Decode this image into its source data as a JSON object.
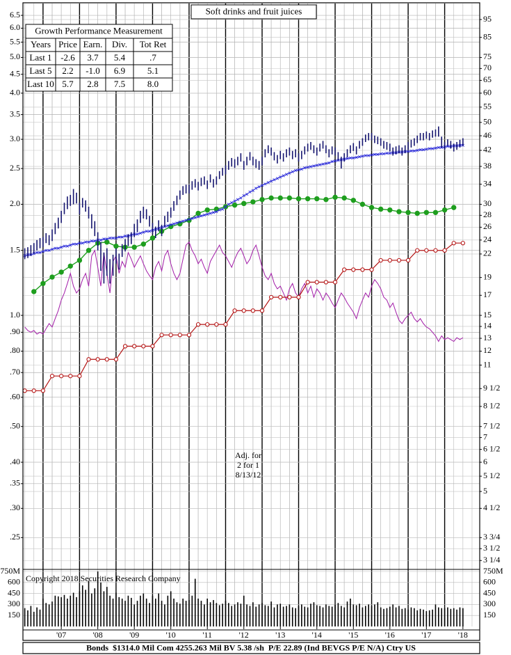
{
  "chart_data": {
    "type": "stock",
    "title": "Soft drinks and fruit juices",
    "annotation": [
      "Adj. for",
      "2 for 1",
      "8/13/12"
    ],
    "copyright": "Copyright 2018 Securities Research Company",
    "footer": "Bonds  $1314.0 Mil Com 4255.263 Mil BV 5.38 /sh  P/E 22.89 (Ind BEVGS P/E N/A) Ctry US",
    "growth_table": {
      "title": "Growth Performance Measurement",
      "header": [
        "Years",
        "Price",
        "Earn.",
        "Div.",
        "Tot Ret"
      ],
      "rows": [
        [
          "Last 1",
          "-2.6",
          "3.7",
          "5.4",
          ".7"
        ],
        [
          "Last 5",
          "2.2",
          "-1.0",
          "6.9",
          "5.1"
        ],
        [
          "Last 10",
          "5.7",
          "2.8",
          "7.5",
          "8.0"
        ]
      ]
    },
    "log_scale": true,
    "grid": true,
    "xlim": [
      2006.45,
      2018.96
    ],
    "xticks": [
      {
        "value": 2007.5,
        "label": "'07"
      },
      {
        "value": 2008.5,
        "label": "'08"
      },
      {
        "value": 2009.5,
        "label": "'09"
      },
      {
        "value": 2010.5,
        "label": "'10"
      },
      {
        "value": 2011.5,
        "label": "'11"
      },
      {
        "value": 2012.5,
        "label": "'12"
      },
      {
        "value": 2013.5,
        "label": "'13"
      },
      {
        "value": 2014.5,
        "label": "'14"
      },
      {
        "value": 2015.5,
        "label": "'15"
      },
      {
        "value": 2016.5,
        "label": "'16"
      },
      {
        "value": 2017.5,
        "label": "'17"
      },
      {
        "value": 2018.5,
        "label": "'18"
      }
    ],
    "ylim": [
      0.205,
      7.0
    ],
    "yticks": [
      6.5,
      {
        "value": 6,
        "label": "6.0"
      },
      5.5,
      {
        "value": 5,
        "label": "5.0"
      },
      4.5,
      {
        "value": 4,
        "label": "4.0"
      },
      3.5,
      {
        "value": 3,
        "label": "3.0"
      },
      2.5,
      {
        "value": 2,
        "label": "2.0"
      },
      1.5,
      {
        "value": 1,
        "label": "1.0"
      },
      {
        "value": 0.9,
        "label": ".90"
      },
      {
        "value": 0.8,
        "label": ".80"
      },
      {
        "value": 0.7,
        "label": ".70"
      },
      {
        "value": 0.6,
        "label": ".60"
      },
      {
        "value": 0.5,
        "label": ".50"
      },
      {
        "value": 0.4,
        "label": ".40"
      },
      {
        "value": 0.35,
        "label": ".35"
      },
      {
        "value": 0.3,
        "label": ".30"
      },
      {
        "value": 0.25,
        "label": ".25"
      }
    ],
    "y2lim": [
      3.075,
      105
    ],
    "y2ticks": [
      95,
      85,
      75,
      70,
      65,
      60,
      55,
      50,
      46,
      42,
      38,
      34,
      30,
      28,
      26,
      24,
      22,
      19,
      17,
      15,
      14,
      13,
      12,
      11,
      {
        "value": 9.5,
        "label": "9 1/2"
      },
      {
        "value": 8.5,
        "label": "8 1/2"
      },
      {
        "value": 7.5,
        "label": "7 1/2"
      },
      7,
      {
        "value": 6.5,
        "label": "6 1/2"
      },
      6,
      {
        "value": 5.5,
        "label": "5 1/2"
      },
      5,
      {
        "value": 4.5,
        "label": "4 1/2"
      },
      {
        "value": 3.75,
        "label": "3 3/4"
      },
      {
        "value": 3.5,
        "label": "3 1/2"
      },
      {
        "value": 3.25,
        "label": "3 1/4"
      }
    ],
    "volume_lim": [
      0,
      750
    ],
    "volume_ticks": [
      {
        "value": 750,
        "label": "750M"
      },
      600,
      450,
      300,
      150
    ],
    "x": [
      2006.5,
      2006.583,
      2006.667,
      2006.75,
      2006.833,
      2006.917,
      2007,
      2007.083,
      2007.167,
      2007.25,
      2007.333,
      2007.417,
      2007.5,
      2007.583,
      2007.667,
      2007.75,
      2007.833,
      2007.917,
      2008,
      2008.083,
      2008.167,
      2008.25,
      2008.333,
      2008.417,
      2008.5,
      2008.583,
      2008.667,
      2008.75,
      2008.833,
      2008.917,
      2009,
      2009.083,
      2009.167,
      2009.25,
      2009.333,
      2009.417,
      2009.5,
      2009.583,
      2009.667,
      2009.75,
      2009.833,
      2009.917,
      2010,
      2010.083,
      2010.167,
      2010.25,
      2010.333,
      2010.417,
      2010.5,
      2010.583,
      2010.667,
      2010.75,
      2010.833,
      2010.917,
      2011,
      2011.083,
      2011.167,
      2011.25,
      2011.333,
      2011.417,
      2011.5,
      2011.583,
      2011.667,
      2011.75,
      2011.833,
      2011.917,
      2012,
      2012.083,
      2012.167,
      2012.25,
      2012.333,
      2012.417,
      2012.5,
      2012.583,
      2012.667,
      2012.75,
      2012.833,
      2012.917,
      2013,
      2013.083,
      2013.167,
      2013.25,
      2013.333,
      2013.417,
      2013.5,
      2013.583,
      2013.667,
      2013.75,
      2013.833,
      2013.917,
      2014,
      2014.083,
      2014.167,
      2014.25,
      2014.333,
      2014.417,
      2014.5,
      2014.583,
      2014.667,
      2014.75,
      2014.833,
      2014.917,
      2015,
      2015.083,
      2015.167,
      2015.25,
      2015.333,
      2015.417,
      2015.5,
      2015.583,
      2015.667,
      2015.75,
      2015.833,
      2015.917,
      2016,
      2016.083,
      2016.167,
      2016.25,
      2016.333,
      2016.417,
      2016.5,
      2016.583,
      2016.667,
      2016.75,
      2016.833,
      2016.917,
      2017,
      2017.083,
      2017.167,
      2017.25,
      2017.333,
      2017.417,
      2017.5,
      2017.583,
      2017.667,
      2017.75,
      2017.833,
      2017.917,
      2018,
      2018.083,
      2018.167,
      2018.25,
      2018.333,
      2018.417,
      2018.5
    ],
    "price": {
      "color": "#14146e",
      "high": [
        1.52,
        1.53,
        1.55,
        1.57,
        1.6,
        1.62,
        1.63,
        1.67,
        1.65,
        1.71,
        1.78,
        1.84,
        1.92,
        2.02,
        2.1,
        2.12,
        2.2,
        2.15,
        2.02,
        2.08,
        2.05,
        1.97,
        1.88,
        1.8,
        1.68,
        1.58,
        1.48,
        1.52,
        1.42,
        1.46,
        1.52,
        1.47,
        1.56,
        1.61,
        1.66,
        1.68,
        1.77,
        1.82,
        1.92,
        1.97,
        1.94,
        1.86,
        1.78,
        1.74,
        1.81,
        1.76,
        1.86,
        1.91,
        1.96,
        2.04,
        2.11,
        2.18,
        2.24,
        2.26,
        2.26,
        2.31,
        2.34,
        2.3,
        2.36,
        2.38,
        2.32,
        2.41,
        2.34,
        2.38,
        2.46,
        2.51,
        2.55,
        2.62,
        2.67,
        2.65,
        2.69,
        2.75,
        2.62,
        2.69,
        2.77,
        2.69,
        2.65,
        2.62,
        2.69,
        2.82,
        2.89,
        2.85,
        2.77,
        2.72,
        2.79,
        2.75,
        2.82,
        2.85,
        2.79,
        2.82,
        2.75,
        2.79,
        2.87,
        2.92,
        2.95,
        2.89,
        2.85,
        2.92,
        2.97,
        2.89,
        2.82,
        2.87,
        2.85,
        2.77,
        2.69,
        2.75,
        2.82,
        2.89,
        2.93,
        2.87,
        2.97,
        3.02,
        3.09,
        3.12,
        3.12,
        3.07,
        3.05,
        3.02,
        2.97,
        2.95,
        2.92,
        2.85,
        2.87,
        2.89,
        2.85,
        2.89,
        2.95,
        2.99,
        3.02,
        3.07,
        3.12,
        3.12,
        3.15,
        3.12,
        3.17,
        3.19,
        3.25,
        3.05,
        2.95,
        3.0,
        2.97,
        2.92,
        2.95,
        2.99,
        3.02
      ],
      "low": [
        1.42,
        1.43,
        1.45,
        1.47,
        1.5,
        1.52,
        1.53,
        1.57,
        1.55,
        1.59,
        1.66,
        1.72,
        1.78,
        1.88,
        1.94,
        1.98,
        2.0,
        2.01,
        1.88,
        1.96,
        1.91,
        1.83,
        1.72,
        1.64,
        1.5,
        1.32,
        1.22,
        1.28,
        1.22,
        1.28,
        1.38,
        1.33,
        1.44,
        1.49,
        1.54,
        1.56,
        1.63,
        1.68,
        1.78,
        1.83,
        1.82,
        1.74,
        1.66,
        1.62,
        1.69,
        1.64,
        1.74,
        1.79,
        1.84,
        1.92,
        1.99,
        2.06,
        2.12,
        2.14,
        2.14,
        2.19,
        2.22,
        2.18,
        2.24,
        2.26,
        2.2,
        2.29,
        2.22,
        2.26,
        2.34,
        2.39,
        2.41,
        2.48,
        2.53,
        2.51,
        2.55,
        2.61,
        2.48,
        2.55,
        2.63,
        2.55,
        2.51,
        2.48,
        2.55,
        2.68,
        2.75,
        2.71,
        2.63,
        2.58,
        2.65,
        2.61,
        2.68,
        2.71,
        2.65,
        2.68,
        2.61,
        2.65,
        2.73,
        2.78,
        2.81,
        2.75,
        2.71,
        2.78,
        2.83,
        2.75,
        2.68,
        2.73,
        2.71,
        2.63,
        2.5,
        2.61,
        2.68,
        2.75,
        2.79,
        2.73,
        2.83,
        2.88,
        2.95,
        2.98,
        2.98,
        2.93,
        2.91,
        2.88,
        2.83,
        2.81,
        2.78,
        2.71,
        2.73,
        2.75,
        2.71,
        2.75,
        2.81,
        2.85,
        2.88,
        2.93,
        2.98,
        2.98,
        3.01,
        2.98,
        3.03,
        3.05,
        3.05,
        2.85,
        2.81,
        2.88,
        2.83,
        2.78,
        2.81,
        2.85,
        2.88
      ]
    },
    "moving_average": {
      "color": "#2424d8",
      "values": [
        1.45,
        1.46,
        1.46,
        1.47,
        1.48,
        1.48,
        1.49,
        1.5,
        1.5,
        1.51,
        1.52,
        1.52,
        1.53,
        1.54,
        1.54,
        1.55,
        1.56,
        1.56,
        1.57,
        1.57,
        1.58,
        1.58,
        1.59,
        1.59,
        1.6,
        1.6,
        1.61,
        1.61,
        1.62,
        1.62,
        1.62,
        1.63,
        1.63,
        1.64,
        1.64,
        1.65,
        1.66,
        1.66,
        1.67,
        1.68,
        1.69,
        1.69,
        1.7,
        1.71,
        1.72,
        1.73,
        1.74,
        1.75,
        1.76,
        1.77,
        1.78,
        1.79,
        1.8,
        1.81,
        1.82,
        1.83,
        1.84,
        1.85,
        1.86,
        1.87,
        1.88,
        1.89,
        1.9,
        1.91,
        1.93,
        1.94,
        1.97,
        2.0,
        2.02,
        2.04,
        2.06,
        2.08,
        2.11,
        2.13,
        2.16,
        2.18,
        2.21,
        2.23,
        2.25,
        2.27,
        2.29,
        2.31,
        2.33,
        2.35,
        2.37,
        2.39,
        2.41,
        2.43,
        2.45,
        2.47,
        2.48,
        2.49,
        2.51,
        2.52,
        2.53,
        2.54,
        2.55,
        2.56,
        2.57,
        2.58,
        2.59,
        2.61,
        2.62,
        2.63,
        2.64,
        2.65,
        2.66,
        2.67,
        2.67,
        2.68,
        2.69,
        2.7,
        2.71,
        2.71,
        2.72,
        2.73,
        2.73,
        2.74,
        2.74,
        2.75,
        2.75,
        2.76,
        2.76,
        2.77,
        2.77,
        2.78,
        2.78,
        2.79,
        2.79,
        2.8,
        2.81,
        2.81,
        2.82,
        2.83,
        2.83,
        2.84,
        2.85,
        2.85,
        2.86,
        2.87,
        2.87,
        2.88,
        2.88,
        2.89,
        2.89
      ]
    },
    "relative_strength": {
      "color": "#a21ca8",
      "values": [
        0.93,
        0.91,
        0.9,
        0.91,
        0.89,
        0.9,
        0.89,
        0.92,
        0.95,
        0.93,
        0.98,
        1.03,
        1.1,
        1.15,
        1.22,
        1.3,
        1.2,
        1.15,
        1.18,
        1.25,
        1.3,
        1.2,
        1.45,
        1.5,
        1.35,
        1.2,
        1.48,
        1.3,
        1.15,
        1.4,
        1.45,
        1.3,
        1.4,
        1.35,
        1.48,
        1.42,
        1.35,
        1.4,
        1.45,
        1.38,
        1.32,
        1.28,
        1.25,
        1.35,
        1.4,
        1.32,
        1.45,
        1.5,
        1.38,
        1.3,
        1.25,
        1.3,
        1.42,
        1.55,
        1.58,
        1.5,
        1.45,
        1.38,
        1.42,
        1.35,
        1.3,
        1.4,
        1.45,
        1.5,
        1.55,
        1.48,
        1.45,
        1.4,
        1.35,
        1.42,
        1.48,
        1.52,
        1.45,
        1.38,
        1.42,
        1.5,
        1.55,
        1.45,
        1.35,
        1.28,
        1.25,
        1.3,
        1.22,
        1.18,
        1.2,
        1.15,
        1.1,
        1.18,
        1.22,
        1.15,
        1.12,
        1.18,
        1.22,
        1.15,
        1.2,
        1.12,
        1.18,
        1.15,
        1.1,
        1.15,
        1.12,
        1.08,
        1.05,
        1.1,
        1.15,
        1.12,
        1.08,
        1.05,
        1.02,
        0.98,
        1.05,
        1.1,
        1.15,
        1.12,
        1.2,
        1.25,
        1.22,
        1.18,
        1.12,
        1.1,
        1.05,
        1.08,
        1.02,
        0.97,
        0.95,
        0.98,
        1.0,
        1.02,
        0.98,
        0.96,
        0.98,
        0.95,
        0.93,
        0.92,
        0.9,
        0.88,
        0.85,
        0.88,
        0.86,
        0.87,
        0.86,
        0.85,
        0.87,
        0.86,
        0.87
      ]
    },
    "volume": {
      "color": "#000000",
      "values": [
        250,
        220,
        280,
        200,
        260,
        230,
        380,
        320,
        300,
        340,
        420,
        410,
        400,
        430,
        380,
        420,
        460,
        400,
        480,
        560,
        500,
        620,
        450,
        520,
        750,
        600,
        480,
        540,
        420,
        380,
        460,
        400,
        380,
        350,
        420,
        390,
        300,
        350,
        420,
        450,
        380,
        320,
        420,
        380,
        450,
        350,
        300,
        420,
        480,
        380,
        330,
        310,
        380,
        350,
        360,
        420,
        650,
        380,
        350,
        300,
        380,
        330,
        360,
        320,
        290,
        310,
        350,
        320,
        280,
        300,
        330,
        310,
        420,
        300,
        280,
        330,
        270,
        300,
        320,
        290,
        280,
        340,
        260,
        300,
        310,
        270,
        280,
        300,
        260,
        250,
        280,
        300,
        270,
        260,
        310,
        330,
        290,
        280,
        260,
        300,
        280,
        270,
        300,
        320,
        280,
        260,
        340,
        380,
        300,
        290,
        310,
        260,
        280,
        300,
        280,
        300,
        330,
        260,
        240,
        250,
        270,
        300,
        260,
        280,
        240,
        250,
        230,
        260,
        250,
        220,
        240,
        230,
        210,
        220,
        230,
        300,
        260,
        250,
        250,
        260,
        240,
        250,
        230,
        260,
        250
      ]
    },
    "earnings": {
      "color": "#1e9e1e",
      "x": [
        2006.75,
        2007,
        2007.25,
        2007.5,
        2007.75,
        2008,
        2008.25,
        2008.5,
        2008.75,
        2009,
        2009.25,
        2009.5,
        2009.75,
        2010,
        2010.25,
        2010.5,
        2010.75,
        2011,
        2011.25,
        2011.5,
        2011.75,
        2012,
        2012.25,
        2012.5,
        2012.75,
        2013,
        2013.25,
        2013.5,
        2013.75,
        2014,
        2014.25,
        2014.5,
        2014.75,
        2015,
        2015.25,
        2015.5,
        2015.75,
        2016,
        2016.25,
        2016.5,
        2016.75,
        2017,
        2017.25,
        2017.5,
        2017.75,
        2018,
        2018.25
      ],
      "values": [
        1.16,
        1.22,
        1.27,
        1.31,
        1.36,
        1.41,
        1.5,
        1.57,
        1.58,
        1.54,
        1.53,
        1.53,
        1.56,
        1.62,
        1.69,
        1.74,
        1.77,
        1.81,
        1.89,
        1.93,
        1.94,
        1.97,
        1.99,
        2.01,
        2.03,
        2.06,
        2.08,
        2.08,
        2.08,
        2.07,
        2.07,
        2.07,
        2.06,
        2.09,
        2.08,
        2.05,
        2.0,
        1.96,
        1.94,
        1.93,
        1.91,
        1.9,
        1.89,
        1.9,
        1.9,
        1.93,
        1.96
      ]
    },
    "dividends": {
      "color": "#b41414",
      "x": [
        2006.5,
        2006.75,
        2007,
        2007.25,
        2007.5,
        2007.75,
        2008,
        2008.25,
        2008.5,
        2008.75,
        2009,
        2009.25,
        2009.5,
        2009.75,
        2010,
        2010.25,
        2010.5,
        2010.75,
        2011,
        2011.25,
        2011.5,
        2011.75,
        2012,
        2012.25,
        2012.5,
        2012.75,
        2013,
        2013.25,
        2013.5,
        2013.75,
        2014,
        2014.25,
        2014.5,
        2014.75,
        2015,
        2015.25,
        2015.5,
        2015.75,
        2016,
        2016.25,
        2016.5,
        2016.75,
        2017,
        2017.25,
        2017.5,
        2017.75,
        2018,
        2018.25,
        2018.5
      ],
      "values": [
        0.625,
        0.625,
        0.625,
        0.685,
        0.685,
        0.685,
        0.685,
        0.76,
        0.76,
        0.76,
        0.76,
        0.825,
        0.825,
        0.825,
        0.825,
        0.885,
        0.885,
        0.885,
        0.885,
        0.945,
        0.945,
        0.945,
        0.945,
        1.03,
        1.03,
        1.03,
        1.03,
        1.12,
        1.12,
        1.12,
        1.12,
        1.23,
        1.23,
        1.23,
        1.23,
        1.33,
        1.33,
        1.33,
        1.33,
        1.41,
        1.41,
        1.41,
        1.41,
        1.5,
        1.5,
        1.5,
        1.5,
        1.57,
        1.57
      ]
    }
  }
}
